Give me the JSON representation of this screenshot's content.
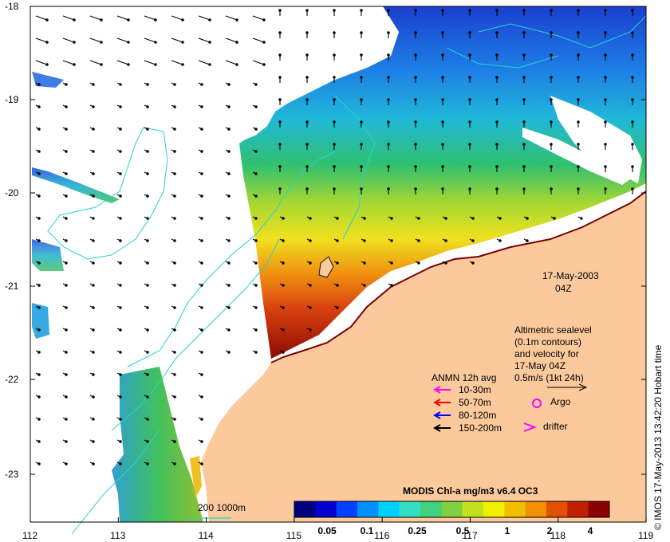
{
  "date": {
    "line1": "17-May-2003",
    "line2": "04Z"
  },
  "axes": {
    "lat_ticks": [
      "-18",
      "-19",
      "-20",
      "-21",
      "-22",
      "-23"
    ],
    "lon_ticks": [
      "112",
      "113",
      "114",
      "115",
      "116",
      "117",
      "118",
      "119"
    ]
  },
  "altimetry_note": [
    "Altimetric sealevel",
    "(0.1m contours)",
    "and velocity for",
    "17-May 04Z",
    "0.5m/s (1kt 24h)"
  ],
  "anmn": {
    "title": "ANMN 12h avg",
    "items": [
      {
        "label": "10-30m",
        "color": "#ff00ff"
      },
      {
        "label": "50-70m",
        "color": "#ff0000"
      },
      {
        "label": "80-120m",
        "color": "#0000ff"
      },
      {
        "label": "150-200m",
        "color": "#000000"
      }
    ]
  },
  "argo_label": "Argo",
  "drifter_label": "drifter",
  "scale_label": "200  1000m",
  "colorbar": {
    "title": "MODIS Chl-a mg/m3 v6.4 OC3",
    "tick_labels": [
      "0.05",
      "0.1",
      "0.25",
      "0.5",
      "1",
      "2",
      "4"
    ],
    "colors": [
      "#00007f",
      "#0000d0",
      "#0040ff",
      "#0090ff",
      "#00d0ff",
      "#30e0c0",
      "#40d080",
      "#80d040",
      "#c0e020",
      "#f0f000",
      "#f0c000",
      "#f09000",
      "#e05000",
      "#c02000",
      "#8b0000"
    ]
  },
  "credit": "© IMOS 17-May-2013 13:42:20 Hobart time",
  "colors": {
    "land": "#fbc99c",
    "contour": "#22d3d3",
    "accent_magenta": "#ff00ff"
  }
}
